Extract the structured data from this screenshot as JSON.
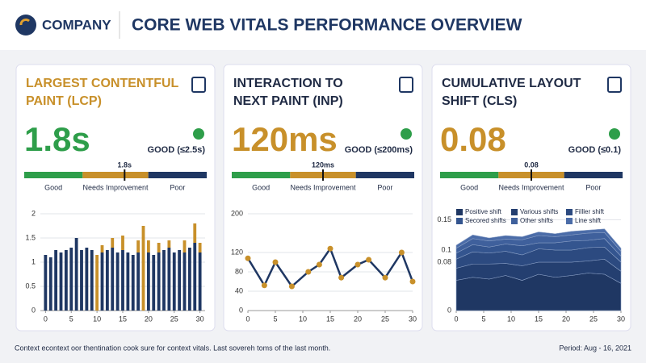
{
  "header": {
    "company": "COMPANY",
    "title": "CORE WEB VITALS PERFORMANCE OVERVIEW"
  },
  "cards": [
    {
      "title": [
        "LARGEST CONTENTFUL",
        "PAINT (LCP)"
      ],
      "value": "1.8s",
      "status": "GOOD (≤2.5s)",
      "scale": [
        "Good",
        "Needs Improvement",
        "Poor"
      ]
    },
    {
      "title": [
        "INTERACTION TO",
        "NEXT PAINT (INP)"
      ],
      "value": "120ms",
      "status": "GOOD (≤200ms)",
      "scale": [
        "Good",
        "Needs Improvement",
        "Poor"
      ]
    },
    {
      "title": [
        "CUMULATIVE LAYOUT",
        "SHIFT (CLS)"
      ],
      "value": "0.08",
      "status": "GOOD (≤0.1)",
      "scale": [
        "Good",
        "Needs Improvement",
        "Poor"
      ]
    }
  ],
  "chart_data": [
    {
      "type": "bar",
      "x": [
        0,
        1,
        2,
        3,
        4,
        5,
        6,
        7,
        8,
        9,
        10,
        11,
        12,
        13,
        14,
        15,
        16,
        17,
        18,
        19,
        20,
        21,
        22,
        23,
        24,
        25,
        26,
        27,
        28,
        29,
        30
      ],
      "series": [
        {
          "color": "#1f3763",
          "values": [
            1.15,
            1.1,
            1.25,
            1.2,
            1.25,
            1.3,
            1.5,
            1.25,
            1.3,
            1.25,
            0,
            1.2,
            1.25,
            1.3,
            1.2,
            1.25,
            1.2,
            1.15,
            1.2,
            0,
            1.2,
            1.15,
            1.2,
            1.25,
            1.3,
            1.2,
            1.25,
            1.2,
            1.3,
            1.4,
            1.2
          ]
        },
        {
          "color": "#c8902a",
          "values": [
            0,
            0,
            0,
            0,
            0,
            0,
            0,
            0,
            0,
            0,
            1.15,
            0.15,
            0,
            0.2,
            0,
            0.3,
            0,
            0,
            0.25,
            1.75,
            0.25,
            0,
            0.2,
            0,
            0.15,
            0,
            0,
            0.25,
            0,
            0.4,
            0.2
          ]
        }
      ],
      "xlim": [
        -1,
        31
      ],
      "xticks": [
        0,
        5,
        10,
        15,
        20,
        25,
        30
      ],
      "ylim": [
        0,
        2
      ],
      "yticks": [
        0,
        0.5,
        1,
        1.5,
        2
      ]
    },
    {
      "type": "line",
      "x": [
        0,
        3,
        5,
        8,
        11,
        13,
        15,
        17,
        20,
        22,
        25,
        28,
        30
      ],
      "series": [
        {
          "color": "#1f3763",
          "marker_color": "#c8902a",
          "values": [
            108,
            52,
            100,
            50,
            80,
            95,
            128,
            68,
            95,
            105,
            68,
            120,
            60
          ]
        }
      ],
      "xlim": [
        0,
        30
      ],
      "xticks": [
        0,
        5,
        10,
        15,
        20,
        25,
        30
      ],
      "ylim": [
        0,
        200
      ],
      "yticks": [
        0,
        40,
        80,
        120,
        200
      ]
    },
    {
      "type": "area",
      "x": [
        0,
        3,
        6,
        9,
        12,
        15,
        18,
        21,
        24,
        27,
        30
      ],
      "series": [
        {
          "name": "Positive shift",
          "color": "#1f3763",
          "values": [
            0.05,
            0.055,
            0.052,
            0.058,
            0.05,
            0.06,
            0.055,
            0.058,
            0.062,
            0.06,
            0.045
          ]
        },
        {
          "name": "Various shifts",
          "color": "#243f70",
          "values": [
            0.02,
            0.022,
            0.025,
            0.02,
            0.024,
            0.02,
            0.025,
            0.022,
            0.02,
            0.025,
            0.02
          ]
        },
        {
          "name": "Filller shift",
          "color": "#2c4a80",
          "values": [
            0.015,
            0.02,
            0.018,
            0.02,
            0.018,
            0.022,
            0.02,
            0.02,
            0.022,
            0.02,
            0.015
          ]
        },
        {
          "name": "Secored shifts",
          "color": "#34558f",
          "values": [
            0.01,
            0.012,
            0.01,
            0.012,
            0.015,
            0.01,
            0.012,
            0.015,
            0.012,
            0.014,
            0.01
          ]
        },
        {
          "name": "Other shifts",
          "color": "#3f609c",
          "values": [
            0.008,
            0.01,
            0.01,
            0.008,
            0.01,
            0.012,
            0.01,
            0.01,
            0.012,
            0.01,
            0.008
          ]
        },
        {
          "name": "Line shift",
          "color": "#4b6ca8",
          "values": [
            0.005,
            0.006,
            0.005,
            0.006,
            0.005,
            0.006,
            0.005,
            0.006,
            0.005,
            0.006,
            0.005
          ]
        }
      ],
      "xlim": [
        0,
        30
      ],
      "xticks": [
        0,
        5,
        10,
        15,
        20,
        25,
        30
      ],
      "ylim": [
        0,
        0.16
      ],
      "yticks": [
        0,
        0.08,
        0.1,
        0.15
      ]
    }
  ],
  "footer": {
    "note": "Context econtext oor thentination cook sure for context vitals. Last sovereh toms of the last month.",
    "period": "Period: Aug - 16, 2021"
  }
}
